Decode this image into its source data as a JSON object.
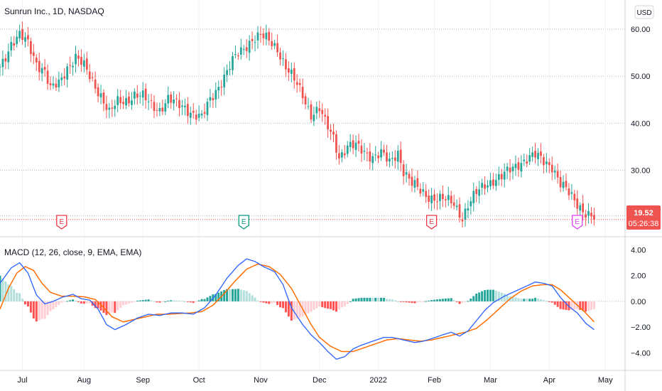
{
  "header": {
    "symbol_title": "Sunrun Inc., 1D, NASDAQ",
    "currency_button": "USD"
  },
  "indicator": {
    "macd_title": "MACD (12, 26, close, 9, EMA, EMA)"
  },
  "price_badge": {
    "price": "19.52",
    "countdown": "05:26:38"
  },
  "earnings_markers": [
    {
      "label": "E",
      "date_index": 22,
      "color": "#f23645"
    },
    {
      "label": "E",
      "date_index": 87,
      "color": "#089981"
    },
    {
      "label": "E",
      "date_index": 154,
      "color": "#f23645"
    },
    {
      "label": "E",
      "date_index": 206,
      "color": "#e040fb"
    }
  ],
  "colors": {
    "up": "#26a69a",
    "down": "#ef5350",
    "macd_line": "#2962ff",
    "signal_line": "#ff6d00",
    "hist_up_strong": "#26a69a",
    "hist_up_weak": "#b2dfdb",
    "hist_down_strong": "#ff5252",
    "hist_down_weak": "#ffcdd2",
    "price_badge": "#ef5350"
  },
  "chart_data": [
    {
      "type": "candlestick",
      "title": "Sunrun Inc., 1D, NASDAQ",
      "x_axis_labels": [
        "Jul",
        "Aug",
        "Sep",
        "Oct",
        "Nov",
        "Dec",
        "2022",
        "Feb",
        "Mar",
        "Apr",
        "May"
      ],
      "x_tick_positions": [
        8,
        30,
        51,
        71,
        93,
        114,
        135,
        155,
        175,
        196,
        216
      ],
      "x_range": [
        0,
        220
      ],
      "y_ticks": [
        "60.00",
        "50.00",
        "40.00",
        "30.00"
      ],
      "y_range": [
        16.3,
        65
      ],
      "last_price": 19.52,
      "close_anchors": [
        [
          0,
          52
        ],
        [
          4,
          57
        ],
        [
          7,
          58.5
        ],
        [
          10,
          57
        ],
        [
          13,
          53
        ],
        [
          16,
          51
        ],
        [
          18,
          47
        ],
        [
          21,
          48.5
        ],
        [
          24,
          52
        ],
        [
          27,
          54
        ],
        [
          30,
          52
        ],
        [
          33,
          49
        ],
        [
          36,
          46
        ],
        [
          39,
          42
        ],
        [
          42,
          44.5
        ],
        [
          45,
          45
        ],
        [
          48,
          46
        ],
        [
          51,
          45.5
        ],
        [
          54,
          44
        ],
        [
          57,
          43
        ],
        [
          60,
          45
        ],
        [
          63,
          44
        ],
        [
          66,
          43.5
        ],
        [
          69,
          42
        ],
        [
          72,
          41
        ],
        [
          75,
          45
        ],
        [
          78,
          48
        ],
        [
          81,
          51
        ],
        [
          84,
          54
        ],
        [
          87,
          56
        ],
        [
          90,
          58
        ],
        [
          93,
          58.5
        ],
        [
          96,
          57.5
        ],
        [
          99,
          56
        ],
        [
          102,
          52
        ],
        [
          105,
          49
        ],
        [
          108,
          46
        ],
        [
          111,
          42
        ],
        [
          114,
          43
        ],
        [
          116,
          40
        ],
        [
          119,
          37
        ],
        [
          121,
          33
        ],
        [
          124,
          35
        ],
        [
          127,
          35
        ],
        [
          130,
          34
        ],
        [
          133,
          33
        ],
        [
          136,
          33.5
        ],
        [
          139,
          31.5
        ],
        [
          142,
          34
        ],
        [
          144,
          30
        ],
        [
          147,
          27
        ],
        [
          150,
          25.5
        ],
        [
          153,
          24.5
        ],
        [
          156,
          24
        ],
        [
          159,
          23.5
        ],
        [
          162,
          23
        ],
        [
          165,
          20
        ],
        [
          167,
          22.5
        ],
        [
          170,
          25
        ],
        [
          173,
          27
        ],
        [
          176,
          28
        ],
        [
          179,
          28.5
        ],
        [
          182,
          30
        ],
        [
          185,
          31.5
        ],
        [
          188,
          32.5
        ],
        [
          191,
          33
        ],
        [
          194,
          32
        ],
        [
          197,
          31
        ],
        [
          200,
          27
        ],
        [
          203,
          25
        ],
        [
          206,
          23
        ],
        [
          209,
          21
        ],
        [
          212,
          19.52
        ]
      ]
    },
    {
      "type": "macd",
      "title": "MACD (12, 26, close, 9, EMA, EMA)",
      "series": [
        {
          "name": "MACD",
          "color": "#2962ff"
        },
        {
          "name": "Signal",
          "color": "#ff6d00"
        },
        {
          "name": "Histogram",
          "color": "#26a69a"
        }
      ],
      "y_ticks": [
        "4.00",
        "2.00",
        "0.00",
        "−2.00",
        "−4.00"
      ],
      "y_range": [
        -5.2,
        4.8
      ],
      "macd_anchors": [
        [
          0,
          1.4
        ],
        [
          4,
          2.6
        ],
        [
          7,
          3.0
        ],
        [
          10,
          2.2
        ],
        [
          13,
          0.5
        ],
        [
          16,
          -0.2
        ],
        [
          19,
          0.0
        ],
        [
          22,
          0.3
        ],
        [
          26,
          0.55
        ],
        [
          29,
          0.2
        ],
        [
          32,
          0.1
        ],
        [
          35,
          -0.6
        ],
        [
          38,
          -1.8
        ],
        [
          41,
          -2.2
        ],
        [
          45,
          -1.8
        ],
        [
          49,
          -1.3
        ],
        [
          53,
          -1.0
        ],
        [
          57,
          -1.1
        ],
        [
          61,
          -0.9
        ],
        [
          65,
          -0.9
        ],
        [
          69,
          -1.0
        ],
        [
          73,
          -0.5
        ],
        [
          77,
          0.5
        ],
        [
          81,
          1.8
        ],
        [
          85,
          2.8
        ],
        [
          88,
          3.3
        ],
        [
          91,
          3.1
        ],
        [
          94,
          2.7
        ],
        [
          98,
          2.3
        ],
        [
          101,
          1.3
        ],
        [
          104,
          -0.5
        ],
        [
          108,
          -1.8
        ],
        [
          111,
          -2.6
        ],
        [
          114,
          -3.2
        ],
        [
          117,
          -3.9
        ],
        [
          120,
          -4.5
        ],
        [
          123,
          -4.3
        ],
        [
          126,
          -3.7
        ],
        [
          129,
          -3.4
        ],
        [
          133,
          -3.1
        ],
        [
          137,
          -2.8
        ],
        [
          140,
          -2.8
        ],
        [
          144,
          -3.0
        ],
        [
          148,
          -3.2
        ],
        [
          151,
          -3.1
        ],
        [
          154,
          -2.9
        ],
        [
          158,
          -2.6
        ],
        [
          161,
          -2.4
        ],
        [
          164,
          -2.7
        ],
        [
          167,
          -2.3
        ],
        [
          170,
          -1.5
        ],
        [
          173,
          -0.7
        ],
        [
          176,
          -0.1
        ],
        [
          180,
          0.4
        ],
        [
          184,
          0.8
        ],
        [
          188,
          1.2
        ],
        [
          191,
          1.5
        ],
        [
          194,
          1.4
        ],
        [
          197,
          1.2
        ],
        [
          200,
          0.3
        ],
        [
          203,
          -0.4
        ],
        [
          206,
          -0.9
        ],
        [
          209,
          -1.7
        ],
        [
          212,
          -2.2
        ]
      ],
      "signal_anchors": [
        [
          0,
          -0.6
        ],
        [
          3,
          1.0
        ],
        [
          6,
          2.2
        ],
        [
          9,
          2.7
        ],
        [
          12,
          2.4
        ],
        [
          15,
          1.4
        ],
        [
          18,
          0.7
        ],
        [
          22,
          0.4
        ],
        [
          26,
          0.4
        ],
        [
          30,
          0.35
        ],
        [
          34,
          0.15
        ],
        [
          37,
          -0.5
        ],
        [
          40,
          -1.2
        ],
        [
          44,
          -1.6
        ],
        [
          48,
          -1.4
        ],
        [
          52,
          -1.2
        ],
        [
          56,
          -1.0
        ],
        [
          60,
          -1.0
        ],
        [
          64,
          -0.95
        ],
        [
          68,
          -0.9
        ],
        [
          72,
          -0.8
        ],
        [
          76,
          -0.3
        ],
        [
          80,
          0.6
        ],
        [
          84,
          1.6
        ],
        [
          88,
          2.5
        ],
        [
          92,
          2.9
        ],
        [
          96,
          2.7
        ],
        [
          100,
          2.1
        ],
        [
          104,
          1.0
        ],
        [
          108,
          -0.6
        ],
        [
          111,
          -1.8
        ],
        [
          114,
          -2.8
        ],
        [
          118,
          -3.5
        ],
        [
          122,
          -3.9
        ],
        [
          126,
          -3.9
        ],
        [
          130,
          -3.6
        ],
        [
          134,
          -3.3
        ],
        [
          138,
          -3.0
        ],
        [
          142,
          -2.9
        ],
        [
          146,
          -3.0
        ],
        [
          150,
          -3.1
        ],
        [
          154,
          -3.0
        ],
        [
          158,
          -2.8
        ],
        [
          162,
          -2.6
        ],
        [
          166,
          -2.4
        ],
        [
          170,
          -2.1
        ],
        [
          174,
          -1.4
        ],
        [
          178,
          -0.6
        ],
        [
          182,
          0.2
        ],
        [
          186,
          0.8
        ],
        [
          190,
          1.2
        ],
        [
          194,
          1.3
        ],
        [
          197,
          1.3
        ],
        [
          200,
          0.9
        ],
        [
          203,
          0.3
        ],
        [
          206,
          -0.3
        ],
        [
          209,
          -0.9
        ],
        [
          212,
          -1.6
        ]
      ]
    }
  ]
}
